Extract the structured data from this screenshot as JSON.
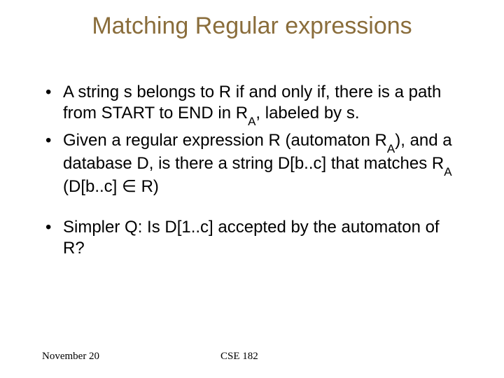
{
  "title": "Matching Regular expressions",
  "bullets": {
    "b1_pre": "A string s belongs to R if and only if, there is a path from START to END in R",
    "b1_sub": "A",
    "b1_post": ", labeled by s.",
    "b2_pre": "Given a regular expression R (automaton R",
    "b2_sub1": "A",
    "b2_mid": "), and a database D, is there a string D[b..c] that matches R",
    "b2_sub2": "A",
    "b2_post": " (D[b..c] ∈ R)",
    "b3": "Simpler Q: Is D[1..c] accepted by the automaton of R?"
  },
  "footer": {
    "date": "November 20",
    "course": "CSE 182"
  },
  "colors": {
    "title": "#8a6d3b",
    "text": "#000000",
    "background": "#ffffff"
  },
  "fonts": {
    "title_size": 34,
    "body_size": 24,
    "footer_size": 15
  }
}
